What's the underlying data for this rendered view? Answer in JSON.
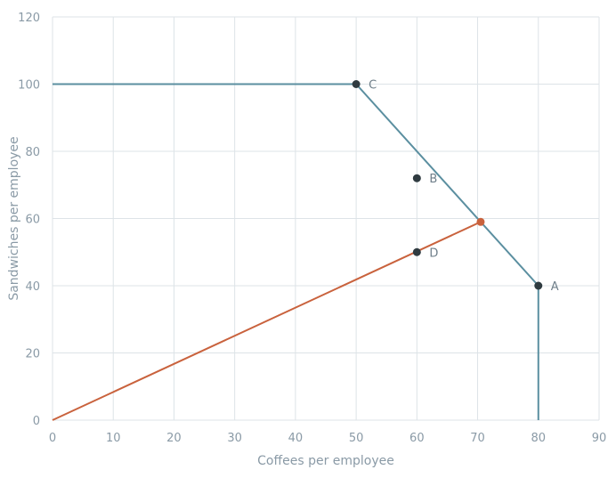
{
  "chart_data": {
    "type": "line",
    "xlabel": "Coffees per employee",
    "ylabel": "Sandwiches per employee",
    "xlim": [
      0,
      90
    ],
    "ylim": [
      0,
      120
    ],
    "xticks": [
      0,
      10,
      20,
      30,
      40,
      50,
      60,
      70,
      80,
      90
    ],
    "yticks": [
      0,
      20,
      40,
      60,
      80,
      100,
      120
    ],
    "grid": true,
    "series": [
      {
        "color": "#5b8fa0",
        "points": [
          [
            0,
            100
          ],
          [
            50,
            100
          ],
          [
            70.5,
            59
          ],
          [
            80,
            40
          ],
          [
            80,
            0
          ]
        ]
      },
      {
        "color": "#c9623d",
        "points": [
          [
            0,
            0
          ],
          [
            70.5,
            59
          ]
        ]
      }
    ],
    "points": [
      {
        "label": "C",
        "x": 50,
        "y": 100,
        "color": "#2f3b40"
      },
      {
        "label": "B",
        "x": 60,
        "y": 72,
        "color": "#2f3b40"
      },
      {
        "label": "D",
        "x": 60,
        "y": 50,
        "color": "#2f3b40"
      },
      {
        "label": "A",
        "x": 80,
        "y": 40,
        "color": "#2f3b40"
      },
      {
        "label": "",
        "x": 70.5,
        "y": 59,
        "color": "#c9623d"
      }
    ]
  }
}
